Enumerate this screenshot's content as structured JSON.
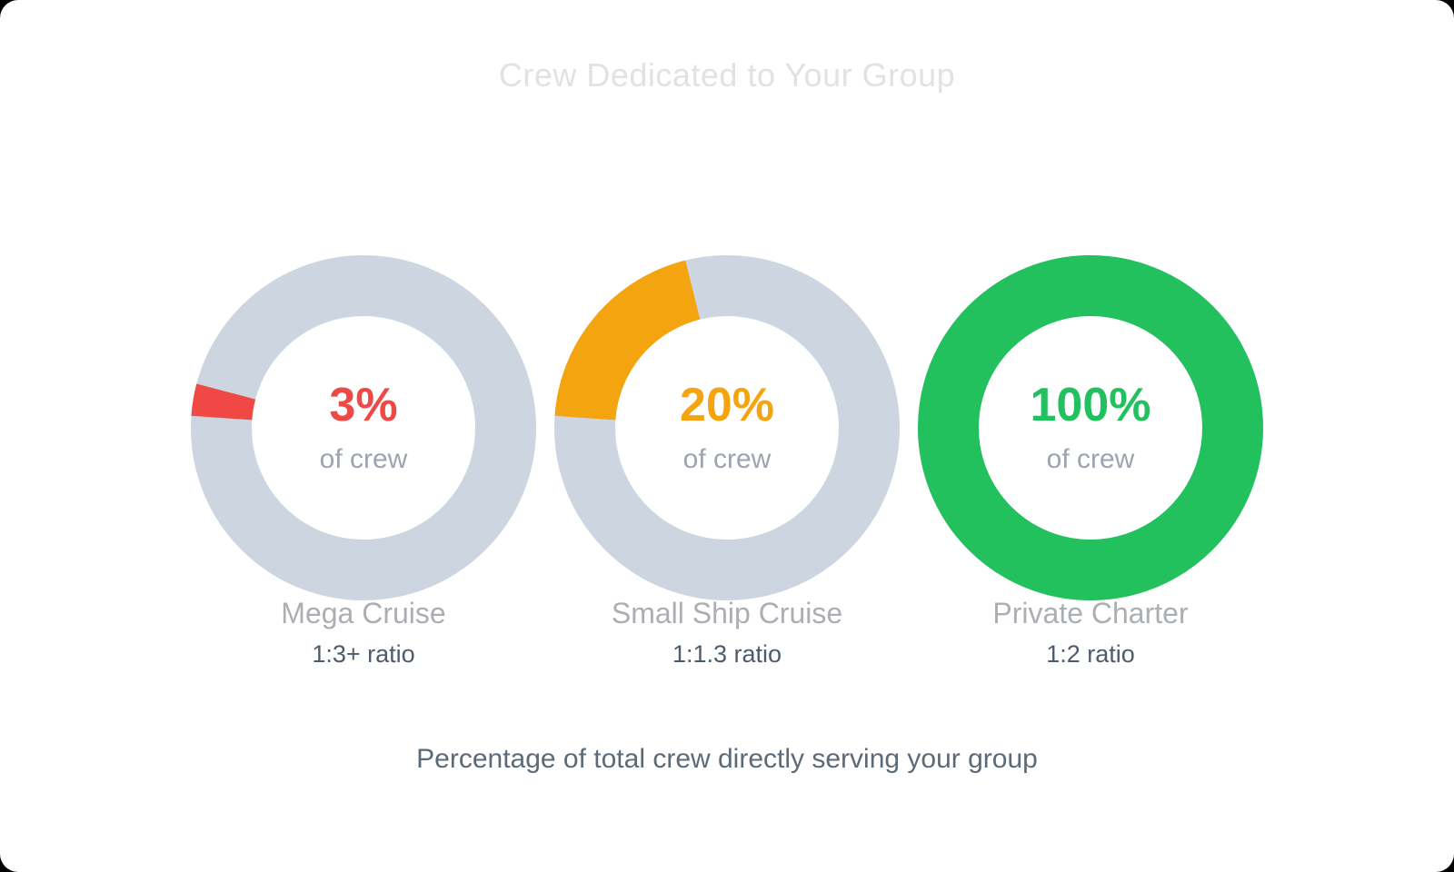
{
  "page": {
    "background_color": "#000000",
    "card_color": "#FFFFFF",
    "title_color": "#E2E2E2"
  },
  "chart_data": {
    "type": "pie",
    "variant": "donut-set",
    "title": "Crew Dedicated to Your Group",
    "caption": "Percentage of total crew directly serving your group",
    "track_color": "#CDD6E0",
    "start_position": "9 o'clock",
    "sweep_direction": "clockwise",
    "start_offset_deg": 184,
    "charts": [
      {
        "label": "Mega Cruise",
        "value_pct": 3,
        "percent_label": "3%",
        "sub_label": "of crew",
        "ratio": "1:3+ ratio",
        "color": "#F04844"
      },
      {
        "label": "Small Ship Cruise",
        "value_pct": 20,
        "percent_label": "20%",
        "sub_label": "of crew",
        "ratio": "1:1.3 ratio",
        "color": "#F3A40F"
      },
      {
        "label": "Private Charter",
        "value_pct": 100,
        "percent_label": "100%",
        "sub_label": "of crew",
        "ratio": "1:2 ratio",
        "color": "#22C15E"
      }
    ]
  }
}
